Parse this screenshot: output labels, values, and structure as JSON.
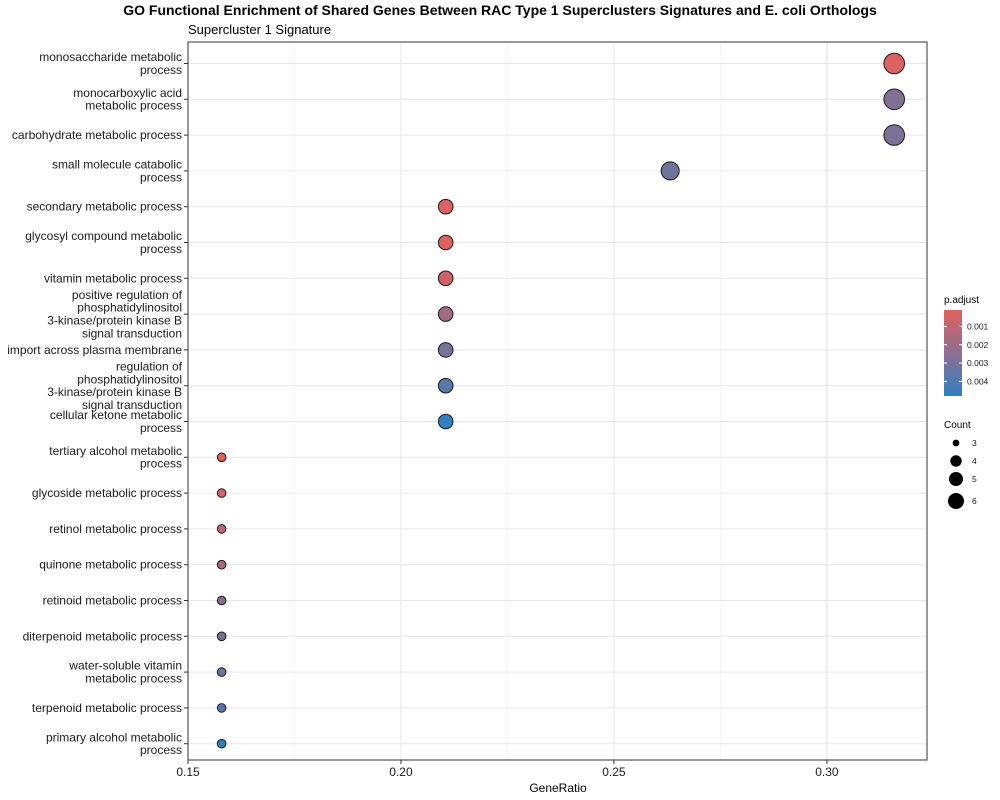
{
  "chart_data": {
    "type": "scatter",
    "title": "GO Functional Enrichment of Shared Genes Between RAC Type 1 Superclusters Signatures and E. coli Orthologs",
    "subtitle": "Supercluster 1 Signature",
    "xlabel": "GeneRatio",
    "ylabel": "",
    "xlim": [
      0.15,
      0.3235
    ],
    "x_ticks": [
      "0.15",
      "0.20",
      "0.25",
      "0.30"
    ],
    "x_tick_values": [
      0.15,
      0.2,
      0.25,
      0.3
    ],
    "grid": true,
    "legend_placement": "right",
    "color_legend": {
      "title": "p.adjust",
      "ticks": [
        "0.001",
        "0.002",
        "0.003",
        "0.004"
      ],
      "tick_values": [
        0.001,
        0.002,
        0.003,
        0.004
      ],
      "range": [
        0.0001,
        0.0048
      ],
      "low_color": "#E0605E",
      "high_color": "#2F7FC1"
    },
    "size_legend": {
      "title": "Count",
      "values": [
        3,
        4,
        5,
        6
      ],
      "labels": [
        "3",
        "4",
        "5",
        "6"
      ]
    },
    "points": [
      {
        "term": [
          "monosaccharide metabolic",
          "process"
        ],
        "gene_ratio": 0.3158,
        "count": 6,
        "p_adjust": 0.0002
      },
      {
        "term": [
          "monocarboxylic acid",
          "metabolic process"
        ],
        "gene_ratio": 0.3158,
        "count": 6,
        "p_adjust": 0.0026
      },
      {
        "term": [
          "carbohydrate metabolic process"
        ],
        "gene_ratio": 0.3158,
        "count": 6,
        "p_adjust": 0.0027
      },
      {
        "term": [
          "small molecule catabolic",
          "process"
        ],
        "gene_ratio": 0.2632,
        "count": 5,
        "p_adjust": 0.0031
      },
      {
        "term": [
          "secondary metabolic process"
        ],
        "gene_ratio": 0.2105,
        "count": 4,
        "p_adjust": 0.0002
      },
      {
        "term": [
          "glycosyl compound metabolic",
          "process"
        ],
        "gene_ratio": 0.2105,
        "count": 4,
        "p_adjust": 0.0002
      },
      {
        "term": [
          "vitamin metabolic process"
        ],
        "gene_ratio": 0.2105,
        "count": 4,
        "p_adjust": 0.0006
      },
      {
        "term": [
          "positive regulation of",
          "phosphatidylinositol",
          "3-kinase/protein kinase B",
          "signal transduction"
        ],
        "gene_ratio": 0.2105,
        "count": 4,
        "p_adjust": 0.0018
      },
      {
        "term": [
          "import across plasma membrane"
        ],
        "gene_ratio": 0.2105,
        "count": 4,
        "p_adjust": 0.003
      },
      {
        "term": [
          "regulation of",
          "phosphatidylinositol",
          "3-kinase/protein kinase B",
          "signal transduction"
        ],
        "gene_ratio": 0.2105,
        "count": 4,
        "p_adjust": 0.0037
      },
      {
        "term": [
          "cellular ketone metabolic",
          "process"
        ],
        "gene_ratio": 0.2105,
        "count": 4,
        "p_adjust": 0.0048
      },
      {
        "term": [
          "tertiary alcohol metabolic",
          "process"
        ],
        "gene_ratio": 0.1579,
        "count": 3,
        "p_adjust": 0.0002
      },
      {
        "term": [
          "glycoside metabolic process"
        ],
        "gene_ratio": 0.1579,
        "count": 3,
        "p_adjust": 0.0004
      },
      {
        "term": [
          "retinol metabolic process"
        ],
        "gene_ratio": 0.1579,
        "count": 3,
        "p_adjust": 0.001
      },
      {
        "term": [
          "quinone metabolic process"
        ],
        "gene_ratio": 0.1579,
        "count": 3,
        "p_adjust": 0.0016
      },
      {
        "term": [
          "retinoid metabolic process"
        ],
        "gene_ratio": 0.1579,
        "count": 3,
        "p_adjust": 0.0024
      },
      {
        "term": [
          "diterpenoid metabolic process"
        ],
        "gene_ratio": 0.1579,
        "count": 3,
        "p_adjust": 0.003
      },
      {
        "term": [
          "water-soluble vitamin",
          "metabolic process"
        ],
        "gene_ratio": 0.1579,
        "count": 3,
        "p_adjust": 0.0033
      },
      {
        "term": [
          "terpenoid metabolic process"
        ],
        "gene_ratio": 0.1579,
        "count": 3,
        "p_adjust": 0.0038
      },
      {
        "term": [
          "primary alcohol metabolic",
          "process"
        ],
        "gene_ratio": 0.1579,
        "count": 3,
        "p_adjust": 0.0047
      }
    ]
  }
}
